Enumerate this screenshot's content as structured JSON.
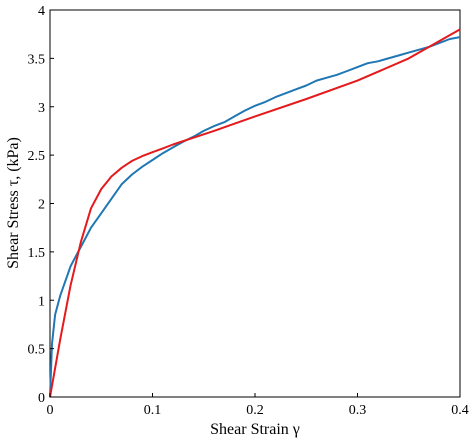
{
  "chart_data": {
    "type": "line",
    "title": "",
    "xlabel": "Shear Strain γ",
    "ylabel": "Shear Stress τ, (kPa)",
    "xlim": [
      0,
      0.4
    ],
    "ylim": [
      0,
      4
    ],
    "xticks": [
      0,
      0.1,
      0.2,
      0.3,
      0.4
    ],
    "xtick_labels": [
      "0",
      "0.1",
      "0.2",
      "0.3",
      "0.4"
    ],
    "yticks": [
      0,
      0.5,
      1,
      1.5,
      2,
      2.5,
      3,
      3.5,
      4
    ],
    "ytick_labels": [
      "0",
      "0.5",
      "1",
      "1.5",
      "2",
      "2.5",
      "3",
      "3.5",
      "4"
    ],
    "grid": false,
    "legend": "none",
    "series": [
      {
        "color": "#1f77b4",
        "x": [
          0,
          0.002,
          0.005,
          0.01,
          0.015,
          0.02,
          0.025,
          0.03,
          0.035,
          0.04,
          0.05,
          0.06,
          0.07,
          0.08,
          0.09,
          0.1,
          0.11,
          0.12,
          0.13,
          0.14,
          0.15,
          0.16,
          0.17,
          0.18,
          0.19,
          0.2,
          0.21,
          0.22,
          0.23,
          0.24,
          0.25,
          0.26,
          0.27,
          0.28,
          0.29,
          0.3,
          0.31,
          0.32,
          0.33,
          0.34,
          0.35,
          0.36,
          0.37,
          0.38,
          0.39,
          0.4
        ],
        "y": [
          0,
          0.55,
          0.85,
          1.05,
          1.2,
          1.35,
          1.45,
          1.55,
          1.65,
          1.75,
          1.9,
          2.05,
          2.2,
          2.3,
          2.38,
          2.45,
          2.52,
          2.58,
          2.64,
          2.69,
          2.75,
          2.8,
          2.84,
          2.9,
          2.96,
          3.01,
          3.05,
          3.1,
          3.14,
          3.18,
          3.22,
          3.27,
          3.3,
          3.33,
          3.37,
          3.41,
          3.45,
          3.47,
          3.5,
          3.53,
          3.56,
          3.59,
          3.62,
          3.66,
          3.7,
          3.72
        ]
      },
      {
        "color": "#e41a1c",
        "x": [
          0,
          0.01,
          0.02,
          0.03,
          0.04,
          0.05,
          0.06,
          0.07,
          0.08,
          0.09,
          0.1,
          0.11,
          0.12,
          0.14,
          0.16,
          0.2,
          0.25,
          0.3,
          0.35,
          0.4
        ],
        "y": [
          0,
          0.6,
          1.15,
          1.6,
          1.95,
          2.15,
          2.28,
          2.37,
          2.44,
          2.49,
          2.53,
          2.57,
          2.61,
          2.68,
          2.75,
          2.9,
          3.08,
          3.27,
          3.5,
          3.8
        ]
      }
    ]
  }
}
